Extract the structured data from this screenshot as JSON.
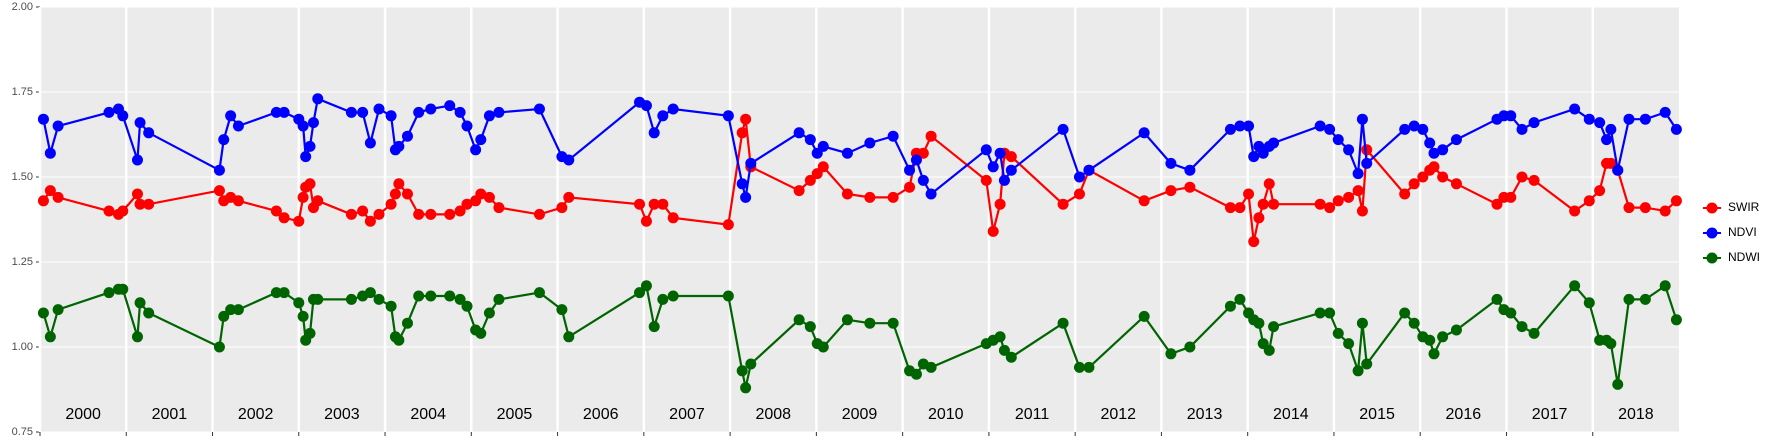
{
  "chart_data": {
    "type": "line",
    "x": [
      2000.04,
      2000.12,
      2000.21,
      2000.8,
      2000.91,
      2000.96,
      2001.13,
      2001.16,
      2001.26,
      2002.08,
      2002.13,
      2002.21,
      2002.3,
      2002.74,
      2002.83,
      2003.0,
      2003.05,
      2003.08,
      2003.13,
      2003.17,
      2003.22,
      2003.61,
      2003.74,
      2003.83,
      2003.93,
      2004.07,
      2004.12,
      2004.16,
      2004.26,
      2004.39,
      2004.53,
      2004.75,
      2004.87,
      2004.95,
      2005.05,
      2005.11,
      2005.21,
      2005.32,
      2005.79,
      2006.05,
      2006.13,
      2006.95,
      2007.03,
      2007.12,
      2007.22,
      2007.34,
      2007.98,
      2008.14,
      2008.18,
      2008.24,
      2008.8,
      2008.93,
      2009.01,
      2009.08,
      2009.36,
      2009.62,
      2009.89,
      2010.08,
      2010.16,
      2010.24,
      2010.33,
      2010.97,
      2011.05,
      2011.13,
      2011.18,
      2011.26,
      2011.86,
      2012.05,
      2012.16,
      2012.8,
      2013.11,
      2013.33,
      2013.8,
      2013.91,
      2014.01,
      2014.07,
      2014.13,
      2014.18,
      2014.25,
      2014.3,
      2014.84,
      2014.95,
      2015.05,
      2015.17,
      2015.28,
      2015.33,
      2015.38,
      2015.82,
      2015.93,
      2016.03,
      2016.11,
      2016.16,
      2016.26,
      2016.42,
      2016.89,
      2016.97,
      2017.05,
      2017.18,
      2017.32,
      2017.79,
      2017.96,
      2018.08,
      2018.16,
      2018.21,
      2018.29,
      2018.42,
      2018.61,
      2018.84,
      2018.97
    ],
    "series": [
      {
        "name": "SWIR",
        "color": "#ff0000",
        "values": [
          1.43,
          1.46,
          1.44,
          1.4,
          1.39,
          1.4,
          1.45,
          1.42,
          1.42,
          1.46,
          1.43,
          1.44,
          1.43,
          1.4,
          1.38,
          1.37,
          1.44,
          1.47,
          1.48,
          1.41,
          1.43,
          1.39,
          1.4,
          1.37,
          1.39,
          1.42,
          1.45,
          1.48,
          1.45,
          1.39,
          1.39,
          1.39,
          1.4,
          1.42,
          1.43,
          1.45,
          1.44,
          1.41,
          1.39,
          1.41,
          1.44,
          1.42,
          1.37,
          1.42,
          1.42,
          1.38,
          1.36,
          1.63,
          1.67,
          1.53,
          1.46,
          1.49,
          1.51,
          1.53,
          1.45,
          1.44,
          1.44,
          1.47,
          1.57,
          1.57,
          1.62,
          1.49,
          1.34,
          1.42,
          1.57,
          1.56,
          1.42,
          1.45,
          1.52,
          1.43,
          1.46,
          1.47,
          1.41,
          1.41,
          1.45,
          1.31,
          1.38,
          1.42,
          1.48,
          1.42,
          1.42,
          1.41,
          1.43,
          1.44,
          1.46,
          1.4,
          1.58,
          1.45,
          1.48,
          1.5,
          1.52,
          1.53,
          1.5,
          1.48,
          1.42,
          1.44,
          1.44,
          1.5,
          1.49,
          1.4,
          1.43,
          1.46,
          1.54,
          1.54,
          1.52,
          1.41,
          1.41,
          1.4,
          1.43
        ]
      },
      {
        "name": "NDVI",
        "color": "#0000ff",
        "values": [
          1.67,
          1.57,
          1.65,
          1.69,
          1.7,
          1.68,
          1.55,
          1.66,
          1.63,
          1.52,
          1.61,
          1.68,
          1.65,
          1.69,
          1.69,
          1.67,
          1.65,
          1.56,
          1.59,
          1.66,
          1.73,
          1.69,
          1.69,
          1.6,
          1.7,
          1.68,
          1.58,
          1.59,
          1.62,
          1.69,
          1.7,
          1.71,
          1.69,
          1.65,
          1.58,
          1.61,
          1.68,
          1.69,
          1.7,
          1.56,
          1.55,
          1.72,
          1.71,
          1.63,
          1.68,
          1.7,
          1.68,
          1.48,
          1.44,
          1.54,
          1.63,
          1.61,
          1.57,
          1.59,
          1.57,
          1.6,
          1.62,
          1.52,
          1.55,
          1.49,
          1.45,
          1.58,
          1.53,
          1.57,
          1.49,
          1.52,
          1.64,
          1.5,
          1.52,
          1.63,
          1.54,
          1.52,
          1.64,
          1.65,
          1.65,
          1.56,
          1.59,
          1.57,
          1.59,
          1.6,
          1.65,
          1.64,
          1.61,
          1.58,
          1.51,
          1.67,
          1.54,
          1.64,
          1.65,
          1.64,
          1.6,
          1.57,
          1.58,
          1.61,
          1.67,
          1.68,
          1.68,
          1.64,
          1.66,
          1.7,
          1.67,
          1.66,
          1.61,
          1.64,
          1.52,
          1.67,
          1.67,
          1.69,
          1.64
        ]
      },
      {
        "name": "NDWI",
        "color": "#006400",
        "values": [
          1.1,
          1.03,
          1.11,
          1.16,
          1.17,
          1.17,
          1.03,
          1.13,
          1.1,
          1.0,
          1.09,
          1.11,
          1.11,
          1.16,
          1.16,
          1.13,
          1.09,
          1.02,
          1.04,
          1.14,
          1.14,
          1.14,
          1.15,
          1.16,
          1.14,
          1.12,
          1.03,
          1.02,
          1.07,
          1.15,
          1.15,
          1.15,
          1.14,
          1.12,
          1.05,
          1.04,
          1.1,
          1.14,
          1.16,
          1.11,
          1.03,
          1.16,
          1.18,
          1.06,
          1.14,
          1.15,
          1.15,
          0.93,
          0.88,
          0.95,
          1.08,
          1.06,
          1.01,
          1.0,
          1.08,
          1.07,
          1.07,
          0.93,
          0.92,
          0.95,
          0.94,
          1.01,
          1.02,
          1.03,
          0.99,
          0.97,
          1.07,
          0.94,
          0.94,
          1.09,
          0.98,
          1.0,
          1.12,
          1.14,
          1.1,
          1.08,
          1.07,
          1.01,
          0.99,
          1.06,
          1.1,
          1.1,
          1.04,
          1.01,
          0.93,
          1.07,
          0.95,
          1.1,
          1.07,
          1.03,
          1.02,
          0.98,
          1.03,
          1.05,
          1.14,
          1.11,
          1.1,
          1.06,
          1.04,
          1.18,
          1.13,
          1.02,
          1.02,
          1.01,
          0.89,
          1.14,
          1.14,
          1.18,
          1.08
        ]
      }
    ],
    "xlim": [
      2000,
      2019
    ],
    "xticks": [
      2000,
      2001,
      2002,
      2003,
      2004,
      2005,
      2006,
      2007,
      2008,
      2009,
      2010,
      2011,
      2012,
      2013,
      2014,
      2015,
      2016,
      2017,
      2018
    ],
    "ylim": [
      0.75,
      2.0
    ],
    "yticks": [
      {
        "value": 0.75,
        "label": "0.75"
      },
      {
        "value": 1.0,
        "label": "1.00"
      },
      {
        "value": 1.25,
        "label": "1.25"
      },
      {
        "value": 1.5,
        "label": "1.50"
      },
      {
        "value": 1.75,
        "label": "1.75"
      },
      {
        "value": 2.0,
        "label": "2.00"
      }
    ],
    "annotations": [
      {
        "x": 2000.5,
        "text": "2000"
      },
      {
        "x": 2001.5,
        "text": "2001"
      },
      {
        "x": 2002.5,
        "text": "2002"
      },
      {
        "x": 2003.5,
        "text": "2003"
      },
      {
        "x": 2004.5,
        "text": "2004"
      },
      {
        "x": 2005.5,
        "text": "2005"
      },
      {
        "x": 2006.5,
        "text": "2006"
      },
      {
        "x": 2007.5,
        "text": "2007"
      },
      {
        "x": 2008.5,
        "text": "2008"
      },
      {
        "x": 2009.5,
        "text": "2009"
      },
      {
        "x": 2010.5,
        "text": "2010"
      },
      {
        "x": 2011.5,
        "text": "2011"
      },
      {
        "x": 2012.5,
        "text": "2012"
      },
      {
        "x": 2013.5,
        "text": "2013"
      },
      {
        "x": 2014.5,
        "text": "2014"
      },
      {
        "x": 2015.5,
        "text": "2015"
      },
      {
        "x": 2016.5,
        "text": "2016"
      },
      {
        "x": 2017.5,
        "text": "2017"
      },
      {
        "x": 2018.5,
        "text": "2018"
      }
    ],
    "grid": true,
    "legend": "right"
  }
}
